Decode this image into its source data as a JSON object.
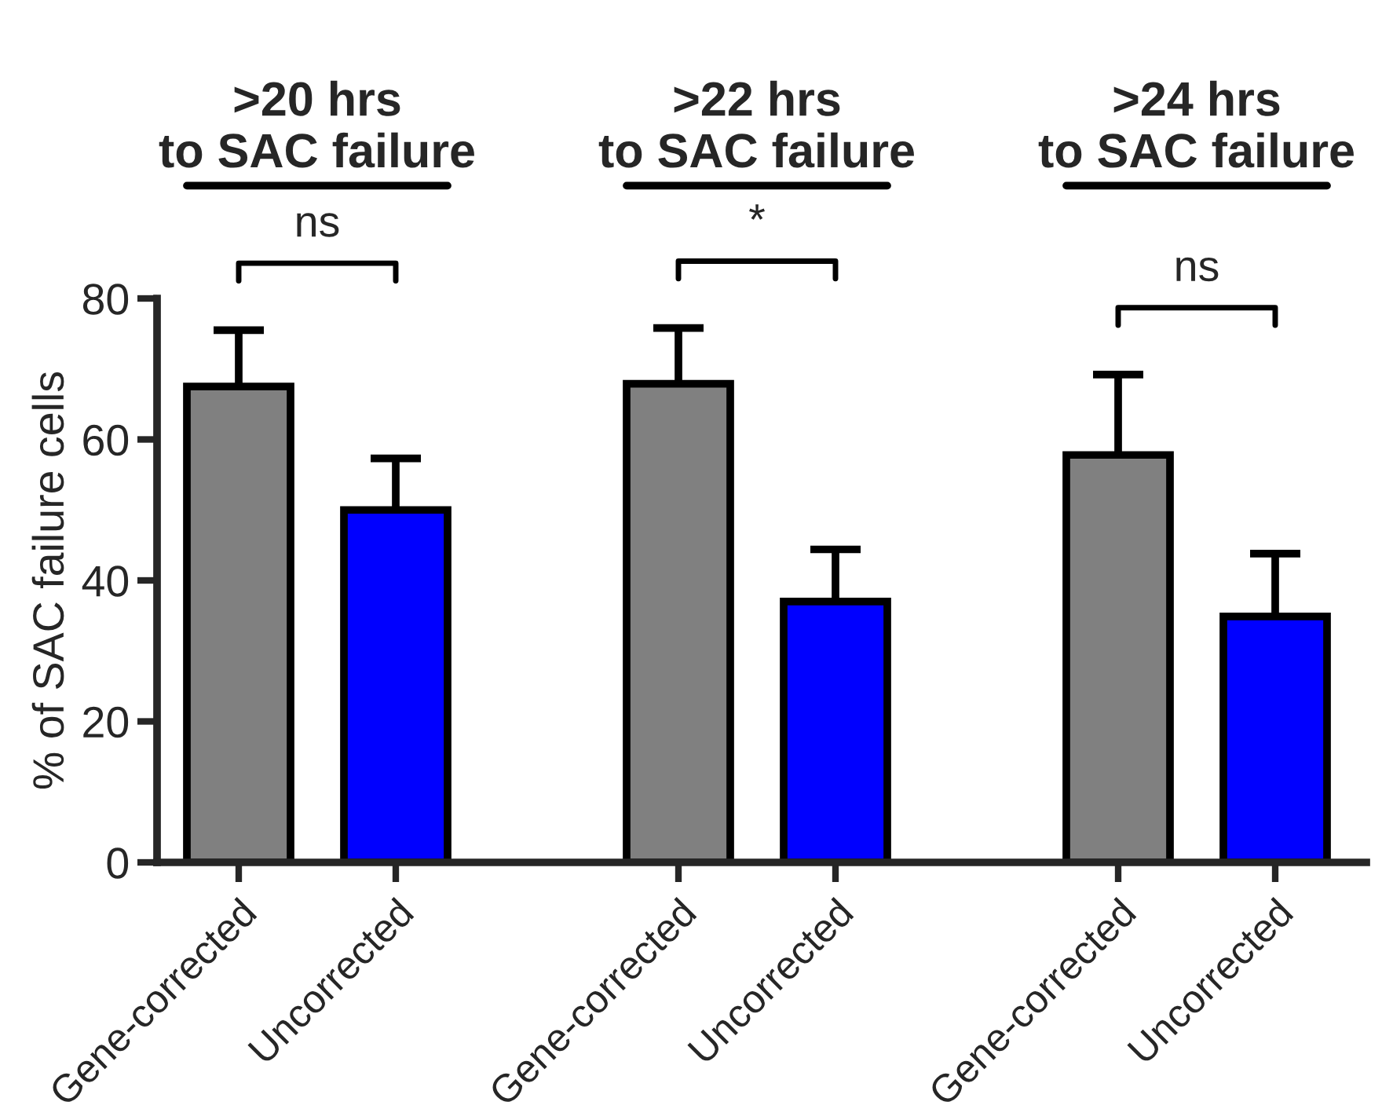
{
  "chart_data": {
    "type": "bar",
    "ylabel": "% of SAC failure cells",
    "categories": [
      "Gene-corrected",
      "Uncorrected",
      "Gene-corrected",
      "Uncorrected",
      "Gene-corrected",
      "Uncorrected"
    ],
    "values": [
      67.5,
      50.0,
      67.9,
      37.0,
      57.8,
      34.9
    ],
    "colors": [
      "#808080",
      "#0000ff",
      "#808080",
      "#0000ff",
      "#808080",
      "#0000ff"
    ],
    "errors": [
      [
        67.5,
        75.5
      ],
      [
        50.0,
        57.3
      ],
      [
        67.9,
        75.8
      ],
      [
        37.0,
        44.4
      ],
      [
        57.8,
        69.2
      ],
      [
        34.9,
        43.8
      ]
    ],
    "ylim": [
      0,
      80
    ],
    "yticks": [
      0,
      20,
      40,
      60,
      80
    ],
    "grid": false,
    "legend": false,
    "annotations": [
      ">20 hrs\nto SAC failure",
      ">22 hrs\nto SAC failure",
      ">24 hrs\nto SAC failure",
      "ns",
      "*",
      "ns"
    ]
  }
}
